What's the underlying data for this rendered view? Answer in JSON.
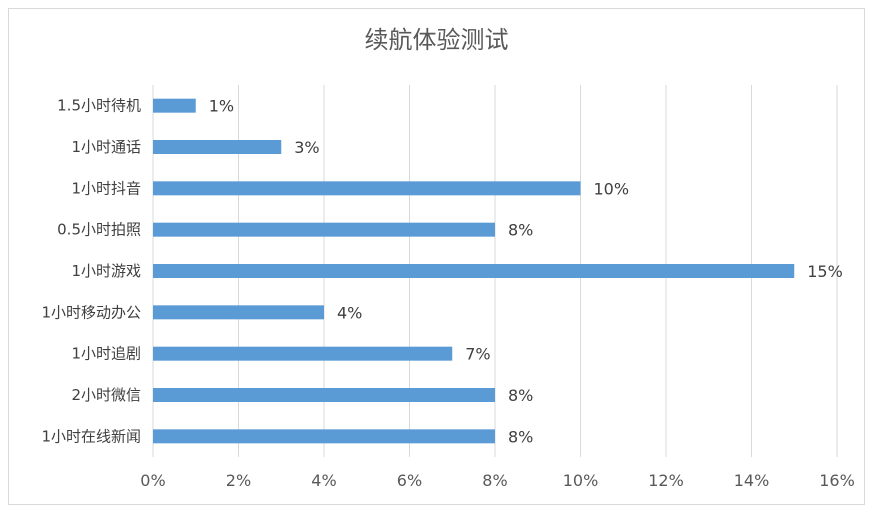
{
  "chart_data": {
    "type": "bar",
    "orientation": "horizontal",
    "title": "续航体验测试",
    "categories": [
      "1.5小时待机",
      "1小时通话",
      "1小时抖音",
      "0.5小时拍照",
      "1小时游戏",
      "1小时移动办公",
      "1小时追剧",
      "2小时微信",
      "1小时在线新闻"
    ],
    "values": [
      1,
      3,
      10,
      8,
      15,
      4,
      7,
      8,
      8
    ],
    "value_labels": [
      "1%",
      "3%",
      "10%",
      "8%",
      "15%",
      "4%",
      "7%",
      "8%",
      "8%"
    ],
    "xlim": [
      0,
      16
    ],
    "x_ticks": [
      0,
      2,
      4,
      6,
      8,
      10,
      12,
      14,
      16
    ],
    "x_tick_labels": [
      "0%",
      "2%",
      "4%",
      "6%",
      "8%",
      "10%",
      "12%",
      "14%",
      "16%"
    ],
    "bar_color": "#5b9bd5",
    "grid": true,
    "legend": "none"
  }
}
